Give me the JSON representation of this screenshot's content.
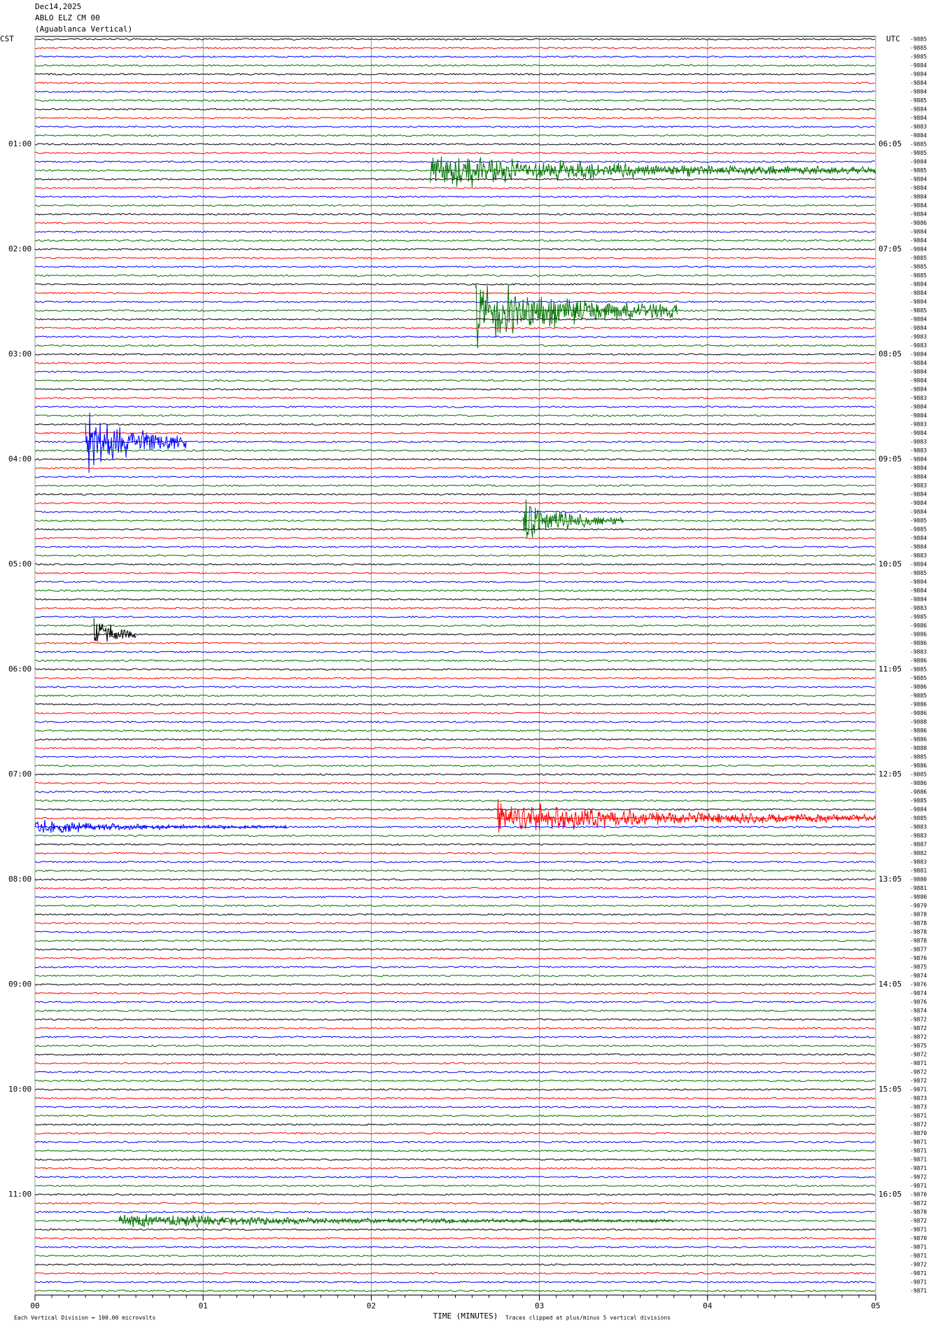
{
  "chart_data": {
    "type": "helicorder",
    "title": "Dec14,2025",
    "station": "ABLO ELZ CM 00",
    "subtitle": "(Aguablanca Vertical)",
    "left_zone": "CST",
    "right_zone": "UTC",
    "traces_per_hour": 12,
    "colors": [
      "#000000",
      "#ff0000",
      "#0000ff",
      "#007000"
    ],
    "cst_labels": [
      "01:00",
      "02:00",
      "03:00",
      "04:00",
      "05:00",
      "06:00",
      "07:00",
      "08:00",
      "09:00",
      "10:00",
      "11:00"
    ],
    "utc_labels": [
      "06:05",
      "07:05",
      "08:05",
      "09:05",
      "10:05",
      "11:05",
      "12:05",
      "13:05",
      "14:05",
      "15:05",
      "16:05"
    ],
    "trace_values": [
      -9885,
      -9885,
      -9885,
      -9884,
      -9884,
      -9884,
      -9884,
      -9885,
      -9884,
      -9884,
      -9883,
      -9884,
      -9885,
      -9885,
      -9884,
      -9885,
      -9884,
      -9884,
      -9884,
      -9884,
      -9884,
      -9886,
      -9884,
      -9884,
      -9884,
      -9885,
      -9885,
      -9885,
      -9884,
      -9884,
      -9884,
      -9885,
      -9884,
      -9884,
      -9883,
      -9883,
      -9884,
      -9884,
      -9884,
      -9884,
      -9884,
      -9883,
      -9884,
      -9884,
      -9883,
      -9884,
      -9883,
      -9883,
      -9884,
      -9884,
      -9884,
      -9883,
      -9884,
      -9884,
      -9884,
      -9885,
      -9885,
      -9884,
      -9884,
      -9883,
      -9884,
      -9885,
      -9884,
      -9884,
      -9884,
      -9883,
      -9885,
      -9886,
      -9886,
      -9886,
      -9883,
      -9886,
      -9885,
      -9885,
      -9886,
      -9885,
      -9886,
      -9886,
      -9888,
      -9886,
      -9886,
      -9888,
      -9885,
      -9886,
      -9885,
      -9886,
      -9886,
      -9885,
      -9884,
      -9885,
      -9883,
      -9883,
      -9887,
      -9882,
      -9883,
      -9881,
      -9880,
      -9881,
      -9880,
      -9879,
      -9878,
      -9878,
      -9878,
      -9878,
      -9877,
      -9876,
      -9875,
      -9874,
      -9876,
      -9874,
      -9876,
      -9874,
      -9872,
      -9872,
      -9872,
      -9875,
      -9872,
      -9871,
      -9872,
      -9872,
      -9871,
      -9873,
      -9873,
      -9871,
      -9872,
      -9870,
      -9871,
      -9871,
      -9871,
      -9871,
      -9872,
      -9871,
      -9870,
      -9872,
      -9870,
      -9872,
      -9871,
      -9870,
      -9871,
      -9871,
      -9872,
      -9871,
      -9871,
      -9871
    ],
    "xlim": [
      0,
      5
    ],
    "xticks": [
      {
        "value": 0,
        "label": "00"
      },
      {
        "value": 1,
        "label": "01"
      },
      {
        "value": 2,
        "label": "02"
      },
      {
        "value": 3,
        "label": "03"
      },
      {
        "value": 4,
        "label": "04"
      },
      {
        "value": 5,
        "label": "05"
      }
    ],
    "x_label": "TIME (MINUTES)",
    "scale_note": "Each Vertical Division =  100.00 microvolts",
    "clip_note": "Traces clipped at plus/minus 5 vertical divisions",
    "grid": true,
    "events": [
      {
        "trace": 15,
        "start": 2.35,
        "duration": 2.65,
        "amplitude": 2.5
      },
      {
        "trace": 31,
        "start": 2.62,
        "duration": 1.2,
        "amplitude": 5
      },
      {
        "trace": 46,
        "start": 0.3,
        "duration": 0.6,
        "amplitude": 5
      },
      {
        "trace": 55,
        "start": 2.9,
        "duration": 0.6,
        "amplitude": 3
      },
      {
        "trace": 68,
        "start": 0.35,
        "duration": 0.25,
        "amplitude": 3
      },
      {
        "trace": 89,
        "start": 2.75,
        "duration": 2.25,
        "amplitude": 2.5
      },
      {
        "trace": 90,
        "start": 0,
        "duration": 1.5,
        "amplitude": 1
      },
      {
        "trace": 135,
        "start": 0.5,
        "duration": 3.3,
        "amplitude": 1
      }
    ]
  }
}
